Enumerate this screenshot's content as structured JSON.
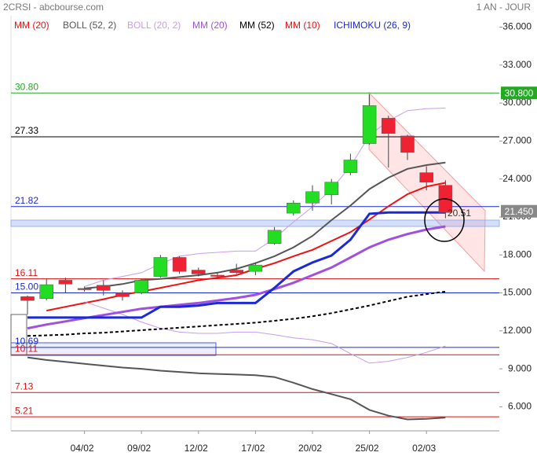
{
  "chart_data": {
    "type": "candlestick",
    "title": "2CRSI - abcbourse.com",
    "subtitle": "1 AN - JOUR",
    "legend": [
      {
        "name": "MM (20)",
        "color": "#ee1111"
      },
      {
        "name": "BOLL (52, 2)",
        "color": "#555555"
      },
      {
        "name": "BOLL (20, 2)",
        "color": "#c79cf0"
      },
      {
        "name": "MM (20)",
        "color": "#a050e0"
      },
      {
        "name": "MM (52)",
        "color": "#000000"
      },
      {
        "name": "MM (10)",
        "color": "#ee1111"
      },
      {
        "name": "ICHIMOKU (26, 9)",
        "color": "#1a2ad6"
      }
    ],
    "categories": [
      null,
      null,
      null,
      "04/02",
      null,
      null,
      "09/02",
      null,
      null,
      "12/02",
      null,
      null,
      "17/02",
      null,
      null,
      "20/02",
      null,
      null,
      "25/02",
      null,
      null,
      "02/03",
      null
    ],
    "candles": {
      "up_color": "#22dd22",
      "down_color": "#ee2233",
      "open": [
        14.7,
        14.55,
        16.0,
        15.35,
        15.6,
        15.0,
        15.0,
        16.3,
        17.8,
        16.8,
        16.4,
        16.8,
        16.7,
        18.9,
        21.3,
        22.1,
        22.75,
        24.5,
        26.8,
        28.8,
        27.4,
        24.5,
        23.5
      ],
      "high": [
        14.8,
        16.1,
        16.2,
        15.5,
        16.0,
        15.2,
        16.1,
        18.0,
        17.9,
        17.0,
        16.6,
        17.3,
        17.4,
        20.2,
        22.3,
        23.5,
        24.0,
        26.0,
        30.7,
        29.0,
        27.5,
        25.0,
        23.9
      ],
      "low": [
        13.3,
        14.4,
        15.0,
        15.1,
        14.8,
        14.4,
        14.9,
        16.2,
        16.5,
        16.3,
        16.2,
        16.5,
        16.4,
        18.8,
        21.1,
        21.5,
        22.0,
        24.3,
        26.7,
        24.9,
        25.5,
        23.1,
        20.9
      ],
      "close": [
        14.4,
        15.65,
        15.7,
        15.25,
        15.2,
        14.7,
        16.0,
        17.8,
        16.7,
        16.5,
        16.35,
        16.6,
        17.2,
        19.95,
        22.1,
        23.0,
        23.75,
        25.5,
        29.8,
        27.6,
        26.1,
        23.75,
        21.35
      ]
    },
    "series": [
      {
        "color": "#ee1111",
        "width": 2,
        "values": [
          null,
          13.6,
          13.9,
          14.2,
          14.5,
          14.85,
          15.1,
          15.4,
          15.7,
          16.0,
          16.2,
          16.4,
          16.9,
          17.35,
          17.9,
          18.4,
          19.1,
          19.8,
          20.8,
          21.85,
          22.8,
          23.4,
          23.7
        ]
      },
      {
        "color": "#555555",
        "width": 2,
        "values": [
          null,
          null,
          null,
          15.35,
          15.5,
          15.7,
          16.0,
          16.1,
          16.25,
          16.4,
          16.6,
          16.9,
          17.35,
          17.9,
          18.6,
          19.5,
          20.75,
          21.9,
          23.2,
          24.1,
          24.8,
          25.1,
          25.3
        ],
        "lower": [
          9.9,
          9.7,
          9.55,
          9.4,
          9.25,
          9.1,
          9.0,
          8.85,
          8.75,
          8.65,
          8.6,
          8.55,
          8.5,
          8.35,
          7.9,
          7.4,
          7.0,
          6.6,
          5.75,
          5.3,
          5.0,
          5.05,
          5.15
        ]
      },
      {
        "color": "#c79cf0",
        "width": 1,
        "values": [
          null,
          null,
          null,
          15.5,
          16.0,
          16.3,
          16.6,
          17.3,
          17.9,
          18.1,
          18.2,
          18.3,
          18.3,
          19.3,
          20.6,
          21.8,
          23.2,
          25.0,
          27.45,
          28.6,
          29.4,
          29.55,
          29.6
        ],
        "lower": [
          null,
          null,
          null,
          14.3,
          13.8,
          13.3,
          12.7,
          12.2,
          11.9,
          11.8,
          11.8,
          11.9,
          11.9,
          11.7,
          11.45,
          11.3,
          11.0,
          10.2,
          9.45,
          9.6,
          9.9,
          10.3,
          10.8
        ]
      },
      {
        "color": "#a050e0",
        "width": 3,
        "values": [
          12.2,
          12.5,
          12.75,
          13.0,
          13.25,
          13.5,
          13.75,
          13.9,
          14.05,
          14.2,
          14.4,
          14.6,
          14.85,
          15.3,
          15.8,
          16.4,
          17.0,
          17.8,
          18.6,
          19.2,
          19.65,
          20.0,
          20.25
        ]
      },
      {
        "color": "#000000",
        "width": 2,
        "dash": true,
        "values": [
          11.6,
          11.65,
          11.7,
          11.8,
          11.85,
          11.95,
          12.05,
          12.15,
          12.25,
          12.35,
          12.45,
          12.55,
          12.65,
          12.8,
          12.95,
          13.15,
          13.4,
          13.7,
          14.0,
          14.35,
          14.7,
          14.9,
          15.1
        ]
      },
      {
        "color": "#1a2ad6",
        "width": 3,
        "values": [
          13.05,
          13.05,
          13.05,
          13.05,
          13.05,
          13.05,
          13.05,
          13.9,
          13.9,
          14.0,
          14.2,
          14.2,
          14.2,
          15.4,
          16.7,
          17.4,
          17.95,
          19.2,
          21.25,
          21.35,
          21.35,
          21.35,
          21.35
        ]
      }
    ],
    "levels": [
      {
        "value": 30.8,
        "label": "30.80",
        "color": "#22aa22"
      },
      {
        "value": 27.33,
        "label": "27.33",
        "color": "#000000"
      },
      {
        "value": 21.82,
        "label": "21.82",
        "color": "#1a2ad6"
      },
      {
        "value": 16.11,
        "label": "16.11",
        "color": "#dd1111"
      },
      {
        "value": 15,
        "label": "15.00",
        "color": "#1a2ad6"
      },
      {
        "value": 10.69,
        "label": "10.69",
        "color": "#1a2ad6"
      },
      {
        "value": 10.11,
        "label": "10.11",
        "color": "#dd1111"
      },
      {
        "value": 7.13,
        "label": "7.13",
        "color": "#dd1111"
      },
      {
        "value": 5.21,
        "label": "5.21",
        "color": "#dd1111"
      }
    ],
    "price_tags": [
      {
        "value": 30.8,
        "label": "30.800",
        "color": "#22aa22"
      },
      {
        "value": 21.45,
        "label": "21.450",
        "color": "#888888"
      }
    ],
    "annotation": {
      "value": 20.51
    },
    "ylim": [
      4.1,
      36.9
    ],
    "yticks": [
      {
        "value": 36,
        "label": "36.000"
      },
      {
        "value": 33,
        "label": "33.000"
      },
      {
        "value": 30,
        "label": "30.000"
      },
      {
        "value": 27,
        "label": "27.000"
      },
      {
        "value": 24,
        "label": "24.000"
      },
      {
        "value": 21,
        "label": "21.000"
      },
      {
        "value": 18,
        "label": "18.000"
      },
      {
        "value": 15,
        "label": "15.000"
      },
      {
        "value": 12,
        "label": "12.000"
      },
      {
        "value": 9,
        "label": "9.000"
      },
      {
        "value": 6,
        "label": "6.000"
      }
    ]
  }
}
